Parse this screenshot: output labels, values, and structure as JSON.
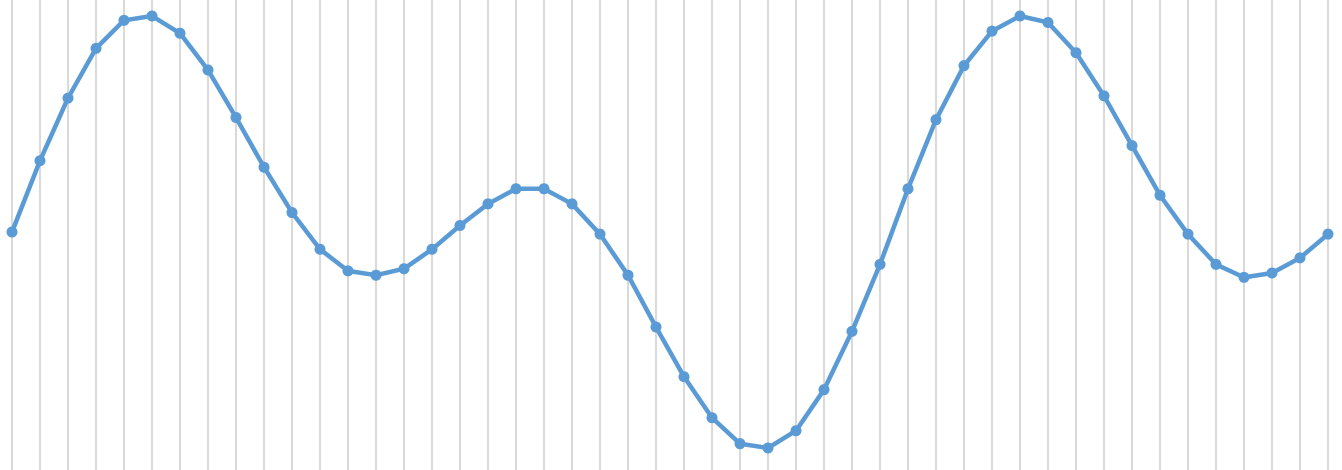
{
  "chart_data": {
    "type": "line",
    "title": "",
    "xlabel": "",
    "ylabel": "",
    "grid": {
      "vertical": true,
      "horizontal": false
    },
    "axes_visible": false,
    "legend": "none",
    "line_color": "#5b9bd5",
    "grid_color": "#d9d9d9",
    "x": [
      0,
      1,
      2,
      3,
      4,
      5,
      6,
      7,
      8,
      9,
      10,
      11,
      12,
      13,
      14,
      15,
      16,
      17,
      18,
      19,
      20,
      21,
      22,
      23,
      24,
      25,
      26,
      27,
      28,
      29,
      30,
      31,
      32,
      33,
      34,
      35,
      36,
      37,
      38,
      39,
      40,
      41,
      42,
      43,
      44,
      45,
      46,
      47
    ],
    "xlim": [
      0,
      47
    ],
    "ylim": [
      -1.0,
      1.0
    ],
    "series": [
      {
        "values": [
          0,
          0.33,
          0.62,
          0.85,
          0.98,
          1.0,
          0.92,
          0.75,
          0.53,
          0.3,
          0.09,
          -0.08,
          -0.18,
          -0.2,
          -0.17,
          -0.08,
          0.03,
          0.13,
          0.2,
          0.2,
          0.13,
          -0.01,
          -0.2,
          -0.44,
          -0.67,
          -0.86,
          -0.98,
          -1.0,
          -0.92,
          -0.73,
          -0.46,
          -0.15,
          0.2,
          0.52,
          0.77,
          0.93,
          1.0,
          0.97,
          0.83,
          0.63,
          0.4,
          0.17,
          -0.01,
          -0.15,
          -0.21,
          -0.19,
          -0.12,
          -0.01
        ]
      }
    ]
  }
}
